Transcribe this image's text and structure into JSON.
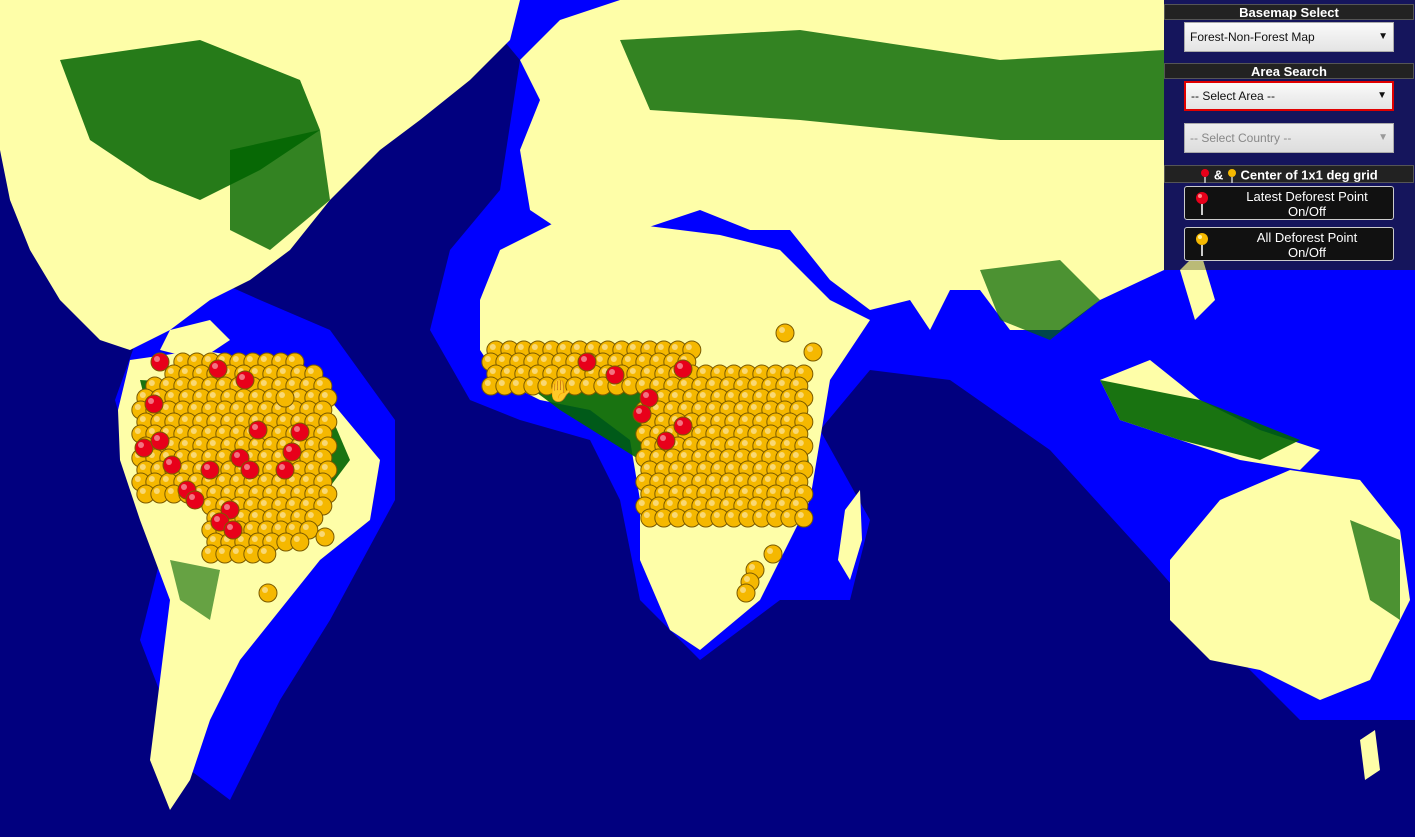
{
  "basemap": {
    "title": "Basemap Select",
    "selected": "Forest-Non-Forest Map"
  },
  "area_search": {
    "title": "Area Search",
    "area_selected": "-- Select Area --",
    "country_selected": "-- Select Country --"
  },
  "legend": {
    "amp": "&",
    "title": "Center of 1x1 deg grid"
  },
  "toggles": {
    "latest_line1": "Latest Deforest Point",
    "latest_line2": "On/Off",
    "all_line1": "All Deforest Point",
    "all_line2": "On/Off"
  },
  "colors": {
    "ocean": "#01007f",
    "coast_ocean": "#0000ff",
    "non_forest": "#fefea8",
    "forest": "#006400",
    "latest_point": "#e8001a",
    "all_point": "#f5b800"
  },
  "icons": {
    "latest_marker": "red-pin-icon",
    "all_marker": "yellow-pin-icon",
    "cursor": "hand-cursor-icon"
  }
}
